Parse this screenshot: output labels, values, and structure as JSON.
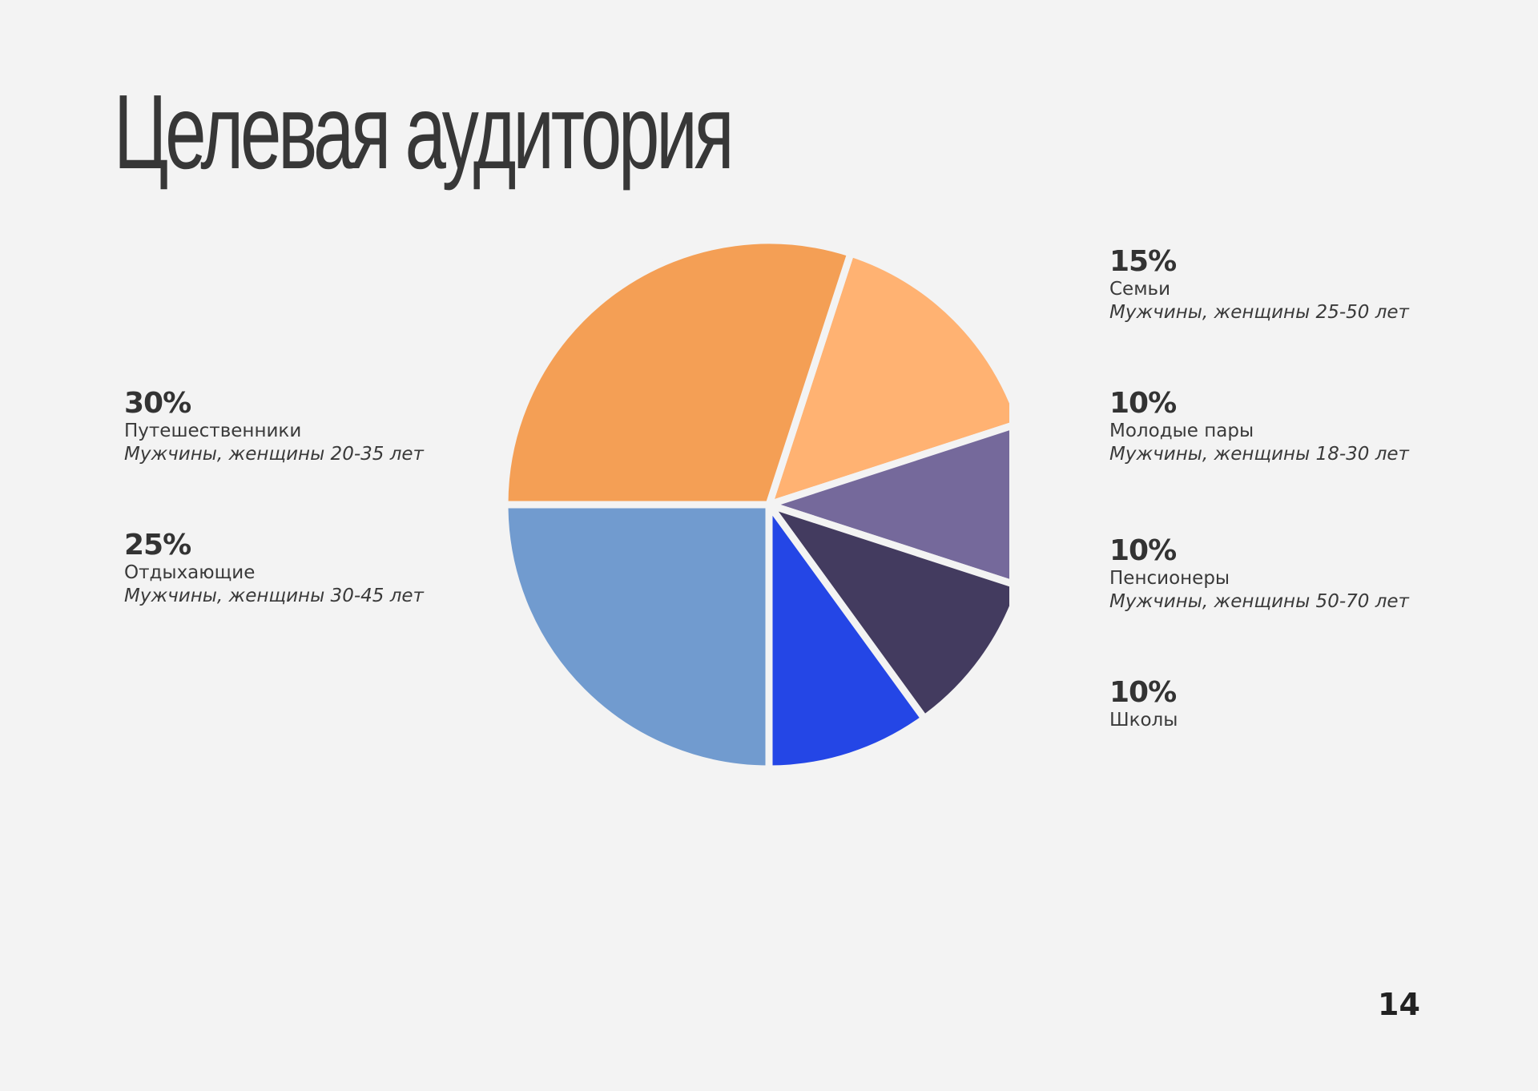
{
  "title": "Целевая аудитория",
  "page_number": "14",
  "chart_data": {
    "type": "pie",
    "title": "",
    "slices": [
      {
        "label": "Семьи",
        "value": 15,
        "percent_label": "15%",
        "description": "Мужчины, женщины 25-50 лет",
        "color": "#ffb272"
      },
      {
        "label": "Молодые пары",
        "value": 10,
        "percent_label": "10%",
        "description": "Мужчины, женщины 18-30 лет",
        "color": "#75699b"
      },
      {
        "label": "Пенсионеры",
        "value": 10,
        "percent_label": "10%",
        "description": "Мужчины, женщины 50-70 лет",
        "color": "#433b5f"
      },
      {
        "label": "Школы",
        "value": 10,
        "percent_label": "10%",
        "description": "",
        "color": "#2446e6"
      },
      {
        "label": "Отдыхающие",
        "value": 25,
        "percent_label": "25%",
        "description": "Мужчины, женщины 30-45 лет",
        "color": "#719bcf"
      },
      {
        "label": "Путешественники",
        "value": 30,
        "percent_label": "30%",
        "description": "Мужчины, женщины 20-35 лет",
        "color": "#f49f55"
      }
    ]
  }
}
